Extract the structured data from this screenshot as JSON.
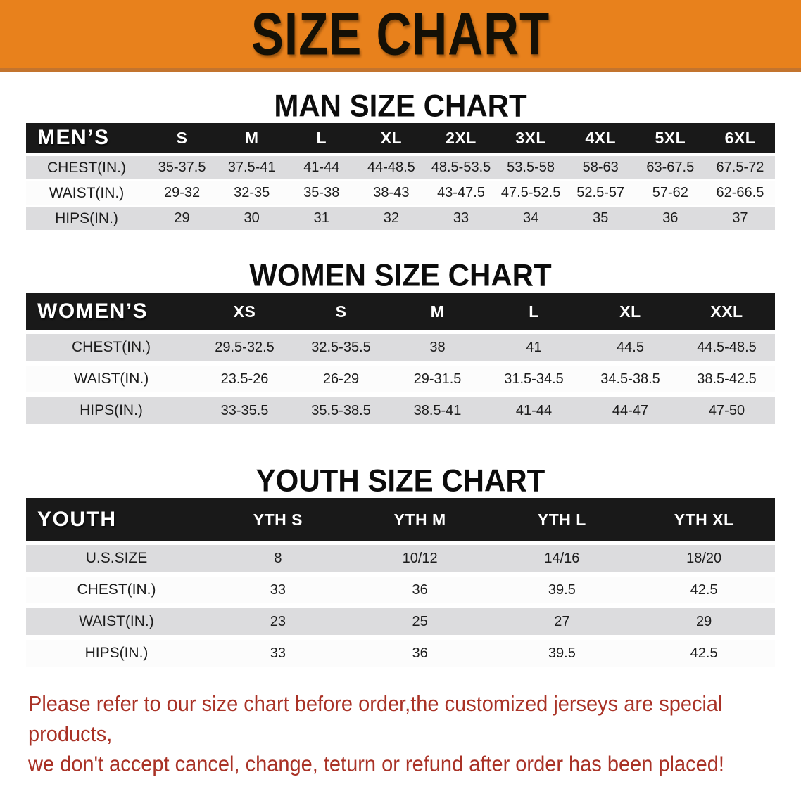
{
  "banner": {
    "title": "SIZE CHART"
  },
  "sections": {
    "men": {
      "heading": "MAN SIZE CHART",
      "table": {
        "header_label": "MEN’S",
        "columns": [
          "S",
          "M",
          "L",
          "XL",
          "2XL",
          "3XL",
          "4XL",
          "5XL",
          "6XL"
        ],
        "rows": [
          {
            "label": "CHEST(IN.)",
            "values": [
              "35-37.5",
              "37.5-41",
              "41-44",
              "44-48.5",
              "48.5-53.5",
              "53.5-58",
              "58-63",
              "63-67.5",
              "67.5-72"
            ]
          },
          {
            "label": "WAIST(IN.)",
            "values": [
              "29-32",
              "32-35",
              "35-38",
              "38-43",
              "43-47.5",
              "47.5-52.5",
              "52.5-57",
              "57-62",
              "62-66.5"
            ]
          },
          {
            "label": "HIPS(IN.)",
            "values": [
              "29",
              "30",
              "31",
              "32",
              "33",
              "34",
              "35",
              "36",
              "37"
            ]
          }
        ]
      }
    },
    "women": {
      "heading": "WOMEN SIZE CHART",
      "table": {
        "header_label": "WOMEN’S",
        "columns": [
          "XS",
          "S",
          "M",
          "L",
          "XL",
          "XXL"
        ],
        "rows": [
          {
            "label": "CHEST(IN.)",
            "values": [
              "29.5-32.5",
              "32.5-35.5",
              "38",
              "41",
              "44.5",
              "44.5-48.5"
            ]
          },
          {
            "label": "WAIST(IN.)",
            "values": [
              "23.5-26",
              "26-29",
              "29-31.5",
              "31.5-34.5",
              "34.5-38.5",
              "38.5-42.5"
            ]
          },
          {
            "label": "HIPS(IN.)",
            "values": [
              "33-35.5",
              "35.5-38.5",
              "38.5-41",
              "41-44",
              "44-47",
              "47-50"
            ]
          }
        ]
      }
    },
    "youth": {
      "heading": "YOUTH SIZE CHART",
      "table": {
        "header_label": "YOUTH",
        "columns": [
          "YTH S",
          "YTH M",
          "YTH L",
          "YTH XL"
        ],
        "rows": [
          {
            "label": "U.S.SIZE",
            "values": [
              "8",
              "10/12",
              "14/16",
              "18/20"
            ]
          },
          {
            "label": "CHEST(IN.)",
            "values": [
              "33",
              "36",
              "39.5",
              "42.5"
            ]
          },
          {
            "label": "WAIST(IN.)",
            "values": [
              "23",
              "25",
              "27",
              "29"
            ]
          },
          {
            "label": "HIPS(IN.)",
            "values": [
              "33",
              "36",
              "39.5",
              "42.5"
            ]
          }
        ]
      }
    }
  },
  "disclaimer": {
    "line1": "Please refer to our size chart before order,the customized jerseys are special products,",
    "line2": "we don't accept cancel, change, teturn or refund after order has been placed!"
  },
  "colors": {
    "banner_bg": "#E8811C",
    "banner_edge": "#C3742E",
    "table_header_bg": "#191919",
    "row_shaded": "#DCDCDE",
    "row_plain": "#FCFCFC",
    "disclaimer_text": "#A93226"
  }
}
